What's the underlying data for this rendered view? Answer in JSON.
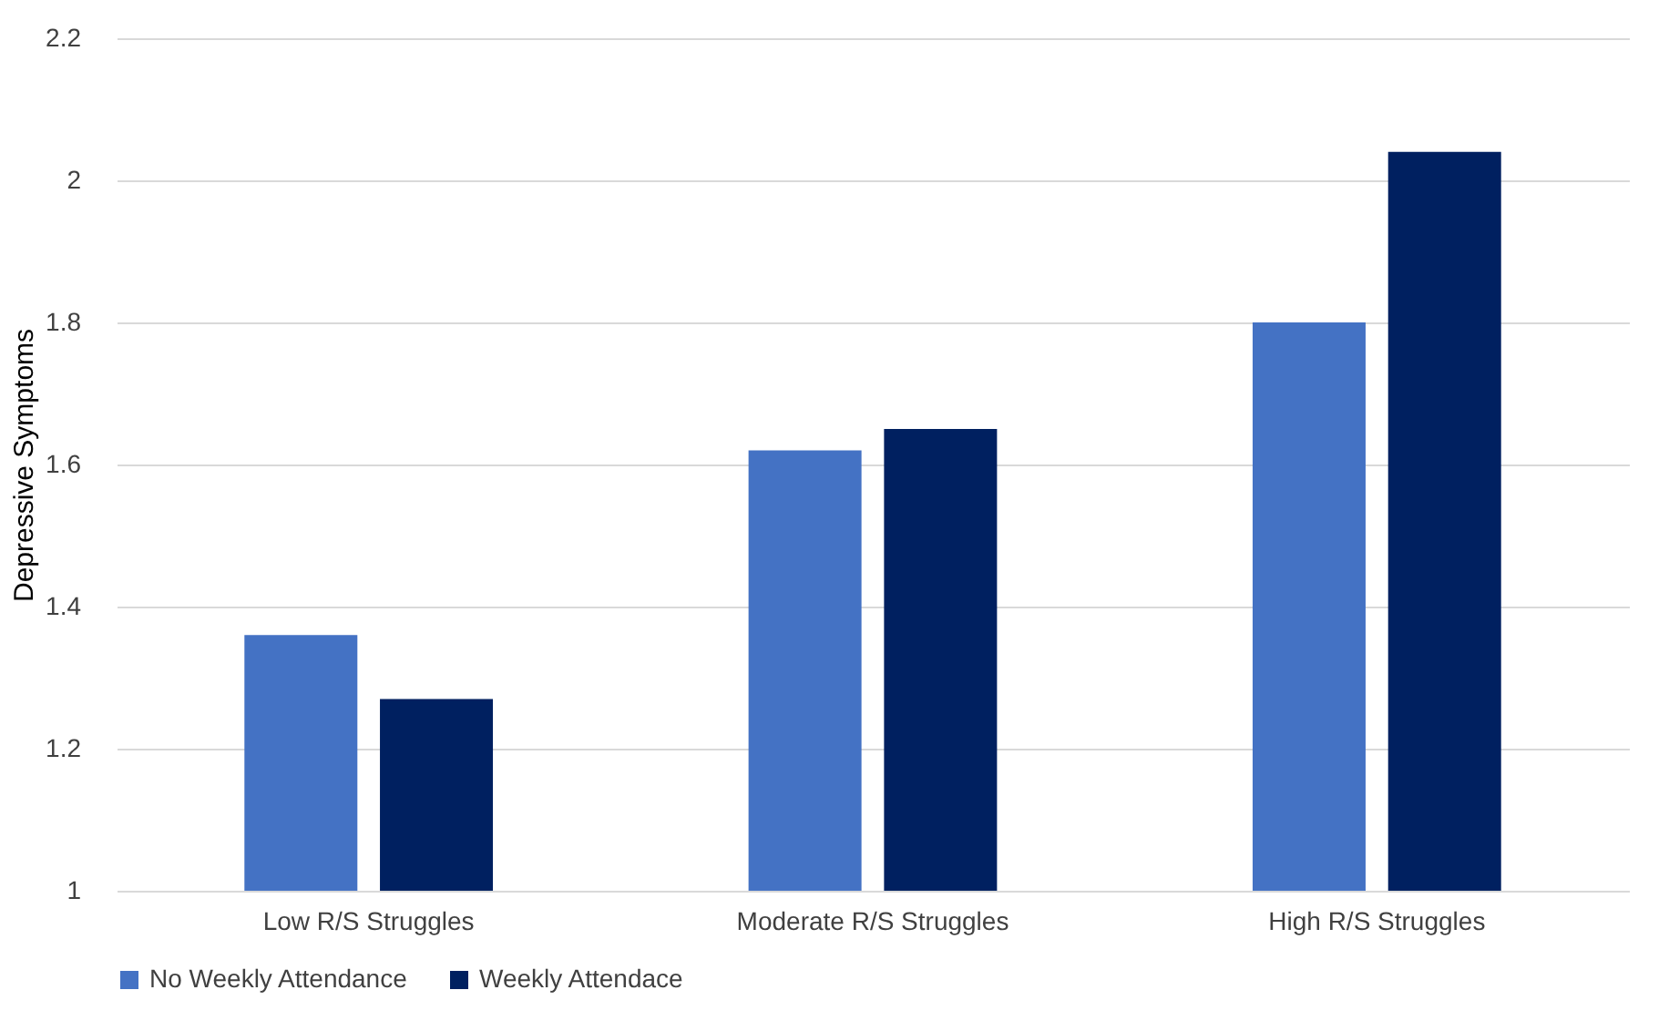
{
  "chart_data": {
    "type": "bar",
    "ylabel": "Depressive Symptoms",
    "categories": [
      "Low R/S Struggles",
      "Moderate R/S Struggles",
      "High R/S Struggles"
    ],
    "series": [
      {
        "name": "No Weekly Attendance",
        "color": "#4472c4",
        "values": [
          1.36,
          1.62,
          1.8
        ]
      },
      {
        "name": "Weekly Attendace",
        "color": "#002060",
        "values": [
          1.27,
          1.65,
          2.04
        ]
      }
    ],
    "ylim": [
      1,
      2.2
    ],
    "yticks": [
      1,
      1.2,
      1.4,
      1.6,
      1.8,
      2,
      2.2
    ],
    "grid": "y",
    "legend": "bottom"
  }
}
